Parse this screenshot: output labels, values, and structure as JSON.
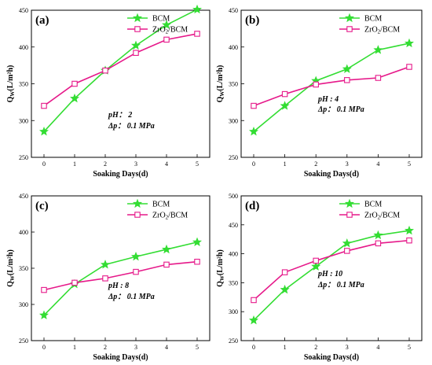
{
  "colors": {
    "BCM": "#33dd33",
    "ZrO2/BCM": "#e6198a"
  },
  "legend": {
    "series1": "BCM",
    "series2_main": "ZrO",
    "series2_sub": "2",
    "series2_tail": "/BCM"
  },
  "axis_text": {
    "xlabel": "Soaking Days(d)",
    "ylabel_main": "Q",
    "ylabel_sub": "W",
    "ylabel_tail": "(L/m²h)"
  },
  "chart_data": [
    {
      "type": "line",
      "label": "(a)",
      "categories": [
        0,
        1,
        2,
        3,
        4,
        5
      ],
      "ylim": [
        250,
        450
      ],
      "yticks": [
        250,
        300,
        350,
        400,
        450
      ],
      "conditions": [
        "pH：  2",
        "Δp：  0.1 MPa"
      ],
      "legend_position": "top-right",
      "series": [
        {
          "name": "BCM",
          "marker": "star",
          "values": [
            285,
            330,
            368,
            402,
            430,
            451
          ]
        },
        {
          "name": "ZrO2/BCM",
          "marker": "square",
          "values": [
            320,
            350,
            368,
            392,
            410,
            418
          ]
        }
      ]
    },
    {
      "type": "line",
      "label": "(b)",
      "categories": [
        0,
        1,
        2,
        3,
        4,
        5
      ],
      "ylim": [
        250,
        450
      ],
      "yticks": [
        250,
        300,
        350,
        400,
        450
      ],
      "conditions": [
        "pH : 4",
        "Δp：  0.1 MPa"
      ],
      "legend_position": "top-right",
      "series": [
        {
          "name": "BCM",
          "marker": "star",
          "values": [
            285,
            320,
            354,
            370,
            396,
            405
          ]
        },
        {
          "name": "ZrO2/BCM",
          "marker": "square",
          "values": [
            320,
            336,
            349,
            355,
            358,
            373
          ]
        }
      ]
    },
    {
      "type": "line",
      "label": "(c)",
      "categories": [
        0,
        1,
        2,
        3,
        4,
        5
      ],
      "ylim": [
        250,
        450
      ],
      "yticks": [
        250,
        300,
        350,
        400,
        450
      ],
      "conditions": [
        "pH : 8",
        "Δp：  0.1 MPa"
      ],
      "legend_position": "top-right",
      "series": [
        {
          "name": "BCM",
          "marker": "star",
          "values": [
            285,
            328,
            355,
            366,
            376,
            386
          ]
        },
        {
          "name": "ZrO2/BCM",
          "marker": "square",
          "values": [
            320,
            330,
            336,
            345,
            355,
            359
          ]
        }
      ]
    },
    {
      "type": "line",
      "label": "(d)",
      "categories": [
        0,
        1,
        2,
        3,
        4,
        5
      ],
      "ylim": [
        250,
        500
      ],
      "yticks": [
        250,
        300,
        350,
        400,
        450,
        500
      ],
      "conditions": [
        "pH : 10",
        "Δp：  0.1 MPa"
      ],
      "legend_position": "top-right",
      "series": [
        {
          "name": "BCM",
          "marker": "star",
          "values": [
            285,
            338,
            378,
            418,
            432,
            440
          ]
        },
        {
          "name": "ZrO2/BCM",
          "marker": "square",
          "values": [
            320,
            368,
            388,
            405,
            418,
            423
          ]
        }
      ]
    }
  ]
}
